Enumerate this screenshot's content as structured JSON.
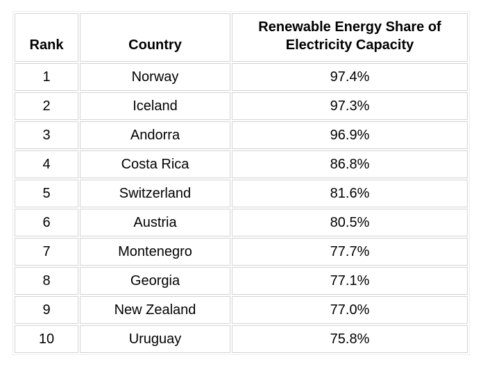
{
  "page": {
    "background_color": "#ffffff",
    "text_color": "#000000",
    "cell_border_color": "#d3d3d3",
    "outer_border_color": "#ededed"
  },
  "table": {
    "headers": {
      "rank": "Rank",
      "country": "Country",
      "share": "Renewable Energy Share of Electricity Capacity"
    },
    "rows": [
      {
        "rank": "1",
        "country": "Norway",
        "share": "97.4%"
      },
      {
        "rank": "2",
        "country": "Iceland",
        "share": "97.3%"
      },
      {
        "rank": "3",
        "country": "Andorra",
        "share": "96.9%"
      },
      {
        "rank": "4",
        "country": "Costa Rica",
        "share": "86.8%"
      },
      {
        "rank": "5",
        "country": "Switzerland",
        "share": "81.6%"
      },
      {
        "rank": "6",
        "country": "Austria",
        "share": "80.5%"
      },
      {
        "rank": "7",
        "country": "Montenegro",
        "share": "77.7%"
      },
      {
        "rank": "8",
        "country": "Georgia",
        "share": "77.1%"
      },
      {
        "rank": "9",
        "country": "New Zealand",
        "share": "77.0%"
      },
      {
        "rank": "10",
        "country": "Uruguay",
        "share": "75.8%"
      }
    ]
  },
  "chart_data": {
    "type": "table",
    "title": "",
    "columns": [
      "Rank",
      "Country",
      "Renewable Energy Share of Electricity Capacity"
    ],
    "rows": [
      [
        1,
        "Norway",
        "97.4%"
      ],
      [
        2,
        "Iceland",
        "97.3%"
      ],
      [
        3,
        "Andorra",
        "96.9%"
      ],
      [
        4,
        "Costa Rica",
        "86.8%"
      ],
      [
        5,
        "Switzerland",
        "81.6%"
      ],
      [
        6,
        "Austria",
        "80.5%"
      ],
      [
        7,
        "Montenegro",
        "77.7%"
      ],
      [
        8,
        "Georgia",
        "77.1%"
      ],
      [
        9,
        "New Zealand",
        "77.0%"
      ],
      [
        10,
        "Uruguay",
        "75.8%"
      ]
    ]
  }
}
